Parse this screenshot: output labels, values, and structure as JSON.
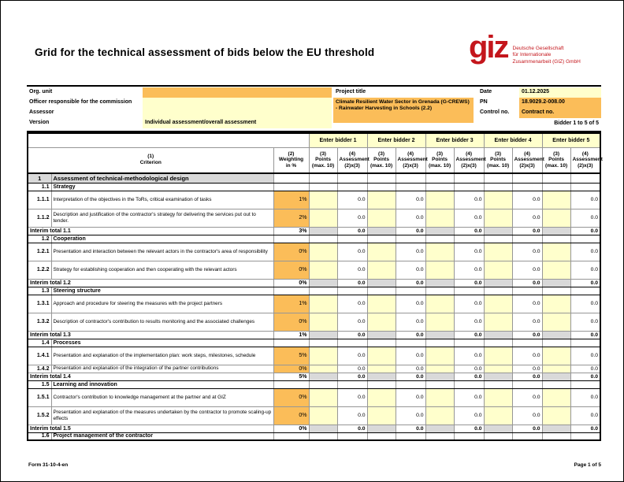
{
  "title": "Grid for the technical assessment of bids below the EU threshold",
  "logo": {
    "mark": "giz",
    "lines": [
      "Deutsche Gesellschaft",
      "für Internationale",
      "Zusammenarbeit (GIZ) GmbH"
    ]
  },
  "meta": {
    "org_unit_label": "Org. unit",
    "org_unit_value": "",
    "officer_label": "Officer responsible for the commission",
    "officer_value": "",
    "assessor_label": "Assessor",
    "assessor_value": "",
    "version_label": "Version",
    "version_value": "Individual assessment/overall assessment",
    "project_title_label": "Project title",
    "project_title_value": "Climate Resilient Water Sector in Grenada (G-CREWS) - Rainwater Harvesting in Schools (2.2)",
    "date_label": "Date",
    "date_value": "01.12.2025",
    "pn_label": "PN",
    "pn_value": "18.9029.2-008.00",
    "control_label": "Control no.",
    "control_value": "Contract no.",
    "bidder_range": "Bidder 1 to 5 of 5"
  },
  "table": {
    "bidders": [
      "Enter bidder 1",
      "Enter bidder 2",
      "Enter bidder 3",
      "Enter bidder 4",
      "Enter bidder 5"
    ],
    "headers": {
      "criterion": "(1)\nCriterion",
      "weighting": "(2)\nWeighting\nin %",
      "points": "(3)\nPoints\n(max. 10)",
      "assessment": "(4)\nAssessment\n(2)x(3)"
    },
    "points_default": "",
    "assessment_default": "0.0",
    "rows": [
      {
        "type": "part",
        "num": "1",
        "text": "Assessment of technical-methodological design"
      },
      {
        "type": "section",
        "num": "1.1",
        "text": "Strategy"
      },
      {
        "type": "criterion",
        "num": "1.1.1",
        "text": "Interpretation of the objectives in the ToRs, critical examination of tasks",
        "weight": "1%"
      },
      {
        "type": "criterion",
        "num": "1.1.2",
        "text": "Description and justification of the contractor's strategy for delivering the services put out to tender.",
        "weight": "2%"
      },
      {
        "type": "total",
        "text": "Interim total 1.1",
        "weight": "3%"
      },
      {
        "type": "section",
        "num": "1.2",
        "text": "Cooperation"
      },
      {
        "type": "criterion",
        "num": "1.2.1",
        "text": "Presentation and interaction between the relevant actors in the contractor's area of responsibility",
        "weight": "0%"
      },
      {
        "type": "criterion",
        "num": "1.2.2",
        "text": "Strategy for establishing cooperation and then cooperating with the relevant actors",
        "weight": "0%"
      },
      {
        "type": "total",
        "text": "Interim total 1.2",
        "weight": "0%"
      },
      {
        "type": "section",
        "num": "1.3",
        "text": "Steering structure"
      },
      {
        "type": "criterion",
        "num": "1.3.1",
        "text": "Approach and procedure for steering the measures with the project partners",
        "weight": "1%"
      },
      {
        "type": "criterion",
        "num": "1.3.2",
        "text": "Description of contractor's contribution to results monitoring and the associated challenges",
        "weight": "0%"
      },
      {
        "type": "total",
        "text": "Interim total 1.3",
        "weight": "1%"
      },
      {
        "type": "section",
        "num": "1.4",
        "text": "Processes"
      },
      {
        "type": "criterion",
        "num": "1.4.1",
        "text": "Presentation and explanation of the implementation plan: work steps, milestones, schedule",
        "weight": "5%"
      },
      {
        "type": "criterion",
        "num": "1.4.2",
        "text": "Presentation and explanation of the integration of the partner contributions",
        "weight": "0%",
        "clipped": true
      },
      {
        "type": "total",
        "text": "Interim total 1.4",
        "weight": "5%"
      },
      {
        "type": "section",
        "num": "1.5",
        "text": "Learning and innovation"
      },
      {
        "type": "criterion",
        "num": "1.5.1",
        "text": "Contractor's contribution to knowledge management at the partner and at GIZ",
        "weight": "0%"
      },
      {
        "type": "criterion",
        "num": "1.5.2",
        "text": "Presentation and explanation of the measures undertaken by the contractor to promote scaling-up effects",
        "weight": "0%"
      },
      {
        "type": "total",
        "text": "Interim total 1.5",
        "weight": "0%"
      },
      {
        "type": "section",
        "num": "1.6",
        "text": "Project management of the contractor"
      }
    ]
  },
  "footer": {
    "left": "Form 31-10-4-en",
    "right": "Page 1 of 5"
  },
  "colors": {
    "orange": "#FBBD59",
    "pale_yellow": "#FFFFCC",
    "gray": "#D9D9D9",
    "giz_red": "#C4161C"
  }
}
